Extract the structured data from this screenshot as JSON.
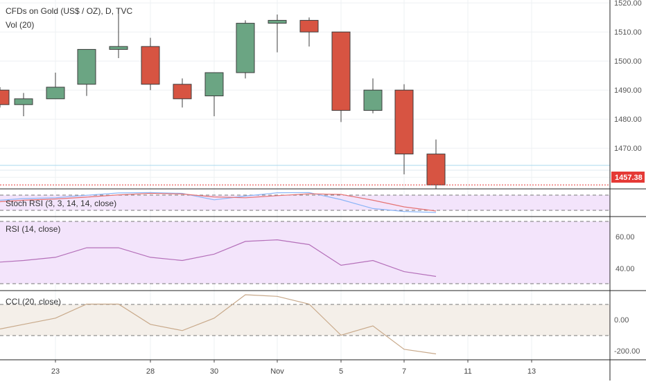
{
  "chart_data": {
    "type": "candlestick",
    "title": "CFDs on Gold (US$ / OZ), D, TVC",
    "volume_label": "Vol (20)",
    "last_price": "1457.38",
    "colors": {
      "up": "#6ba583",
      "down": "#d75442",
      "last_price": "#e53935",
      "stoch_k": "#89b4f7",
      "stoch_d": "#e57373",
      "rsi": "#b46fb9",
      "cci": "#c8a98a",
      "stoch_bg": "#f3e4fb",
      "rsi_bg": "#f3e4fb",
      "cci_bg": "#f4efe9"
    },
    "price_axis": {
      "ticks": [
        "1520.00",
        "1510.00",
        "1500.00",
        "1490.00",
        "1480.00",
        "1470.00",
        "1460.00"
      ],
      "range": [
        1456,
        1521
      ]
    },
    "x_axis": {
      "labels": [
        "23",
        "28",
        "30",
        "Nov",
        "5",
        "7",
        "11",
        "13"
      ]
    },
    "candles": [
      {
        "date": "Oct 21",
        "open": 1490,
        "high": 1491,
        "low": 1484,
        "close": 1485
      },
      {
        "date": "Oct 22",
        "open": 1485,
        "high": 1489,
        "low": 1481,
        "close": 1487
      },
      {
        "date": "Oct 23",
        "open": 1487,
        "high": 1496,
        "low": 1487,
        "close": 1491
      },
      {
        "date": "Oct 24",
        "open": 1492,
        "high": 1504,
        "low": 1488,
        "close": 1504
      },
      {
        "date": "Oct 25",
        "open": 1504,
        "high": 1518,
        "low": 1501,
        "close": 1505
      },
      {
        "date": "Oct 28",
        "open": 1505,
        "high": 1508,
        "low": 1490,
        "close": 1492
      },
      {
        "date": "Oct 29",
        "open": 1492,
        "high": 1494,
        "low": 1484,
        "close": 1487
      },
      {
        "date": "Oct 30",
        "open": 1488,
        "high": 1496,
        "low": 1481,
        "close": 1496
      },
      {
        "date": "Oct 31",
        "open": 1496,
        "high": 1514,
        "low": 1494,
        "close": 1513
      },
      {
        "date": "Nov 1",
        "open": 1513,
        "high": 1516,
        "low": 1503,
        "close": 1514
      },
      {
        "date": "Nov 4",
        "open": 1514,
        "high": 1515,
        "low": 1505,
        "close": 1510
      },
      {
        "date": "Nov 5",
        "open": 1510,
        "high": 1510,
        "low": 1479,
        "close": 1483
      },
      {
        "date": "Nov 6",
        "open": 1483,
        "high": 1494,
        "low": 1482,
        "close": 1490
      },
      {
        "date": "Nov 7",
        "open": 1490,
        "high": 1492,
        "low": 1461,
        "close": 1468
      },
      {
        "date": "Nov 8",
        "open": 1468,
        "high": 1473,
        "low": 1456,
        "close": 1457.38
      }
    ],
    "stoch_rsi": {
      "label": "Stoch RSI (3, 3, 14, 14, close)",
      "k": [
        62,
        70,
        74,
        86,
        97,
        99,
        95,
        64,
        82,
        98,
        99,
        65,
        22,
        8,
        3
      ],
      "d": [
        55,
        62,
        68,
        77,
        88,
        95,
        92,
        78,
        74,
        84,
        93,
        90,
        62,
        30,
        10
      ]
    },
    "rsi": {
      "label": "RSI (14, close)",
      "ticks": [
        "60.00",
        "40.00"
      ],
      "values": [
        44,
        45,
        47,
        53,
        53,
        47,
        45,
        49,
        57,
        58,
        55,
        42,
        45,
        38,
        35
      ]
    },
    "cci": {
      "label": "CCI (20, close)",
      "ticks": [
        "0.00",
        "-200.00"
      ],
      "values": [
        -60,
        -30,
        10,
        100,
        100,
        -30,
        -70,
        10,
        160,
        150,
        100,
        -100,
        -40,
        -190,
        -220
      ]
    }
  }
}
